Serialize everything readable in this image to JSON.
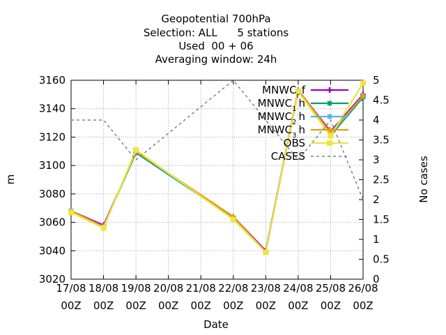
{
  "chart_data": {
    "type": "line",
    "title_lines": [
      "Geopotential 700hPa",
      "Selection: ALL      5 stations",
      "Used  00 + 06",
      "Averaging window: 24h"
    ],
    "xlabel": "Date",
    "ylabel": "m",
    "y2label": "No cases",
    "x_ticks": [
      {
        "top": "17/08",
        "bottom": "00Z"
      },
      {
        "top": "18/08",
        "bottom": "00Z"
      },
      {
        "top": "19/08",
        "bottom": "00Z"
      },
      {
        "top": "20/08",
        "bottom": "00Z"
      },
      {
        "top": "21/08",
        "bottom": "00Z"
      },
      {
        "top": "22/08",
        "bottom": "00Z"
      },
      {
        "top": "23/08",
        "bottom": "00Z"
      },
      {
        "top": "24/08",
        "bottom": "00Z"
      },
      {
        "top": "25/08",
        "bottom": "00Z"
      },
      {
        "top": "26/08",
        "bottom": "00Z"
      }
    ],
    "ylim": [
      3020,
      3160
    ],
    "y_ticks": [
      "3020",
      "3040",
      "3060",
      "3080",
      "3100",
      "3120",
      "3140",
      "3160"
    ],
    "y2lim": [
      0,
      5
    ],
    "y2_ticks": [
      "0",
      "0.5",
      "1",
      "1.5",
      "2",
      "2.5",
      "3",
      "3.5",
      "4",
      "4.5",
      "5"
    ],
    "grid": true,
    "legend_position": "top-right",
    "series": [
      {
        "name": "MNWC",
        "sub": "r",
        "suffix": "f",
        "color": "#9400d3",
        "marker": "plus",
        "axis": "y1",
        "x": [
          0,
          1,
          2,
          5,
          6,
          7,
          8,
          9
        ],
        "values": [
          3068,
          3058,
          3109,
          3064,
          3040,
          3153,
          3124,
          3150
        ]
      },
      {
        "name": "MNWC",
        "sub": "1",
        "suffix": "h",
        "color": "#009e73",
        "marker": "star",
        "axis": "y1",
        "x": [
          0,
          1,
          2,
          5,
          6,
          7,
          8,
          9
        ],
        "values": [
          3068,
          3057,
          3109,
          3063,
          3039,
          3152,
          3121,
          3148
        ]
      },
      {
        "name": "MNWC",
        "sub": "2",
        "suffix": "h",
        "color": "#56b4e9",
        "marker": "star",
        "axis": "y1",
        "x": [
          0,
          1,
          2,
          5,
          6,
          7,
          8,
          9
        ],
        "values": [
          3068,
          3057,
          3110,
          3063,
          3039,
          3152,
          3122,
          3149
        ]
      },
      {
        "name": "MNWC",
        "sub": "3",
        "suffix": "h",
        "color": "#e69f00",
        "marker": "plus",
        "axis": "y1",
        "x": [
          0,
          1,
          2,
          5,
          6,
          7,
          8,
          9
        ],
        "values": [
          3068,
          3057,
          3110,
          3064,
          3039,
          3153,
          3123,
          3149
        ]
      },
      {
        "name": "OBS",
        "sub": "",
        "suffix": "",
        "color": "#f0e442",
        "marker": "square",
        "axis": "y1",
        "x": [
          0,
          1,
          2,
          5,
          6,
          7,
          8,
          9
        ],
        "values": [
          3067,
          3056,
          3111,
          3062,
          3039,
          3152,
          3121,
          3158
        ]
      },
      {
        "name": "CASES",
        "sub": "",
        "suffix": "",
        "color": "#808080",
        "marker": "none",
        "axis": "y2",
        "dashed": true,
        "x": [
          0,
          1,
          2,
          5,
          6,
          7,
          8,
          9
        ],
        "values": [
          4,
          4,
          3,
          5,
          4,
          3,
          4,
          2
        ]
      }
    ]
  }
}
